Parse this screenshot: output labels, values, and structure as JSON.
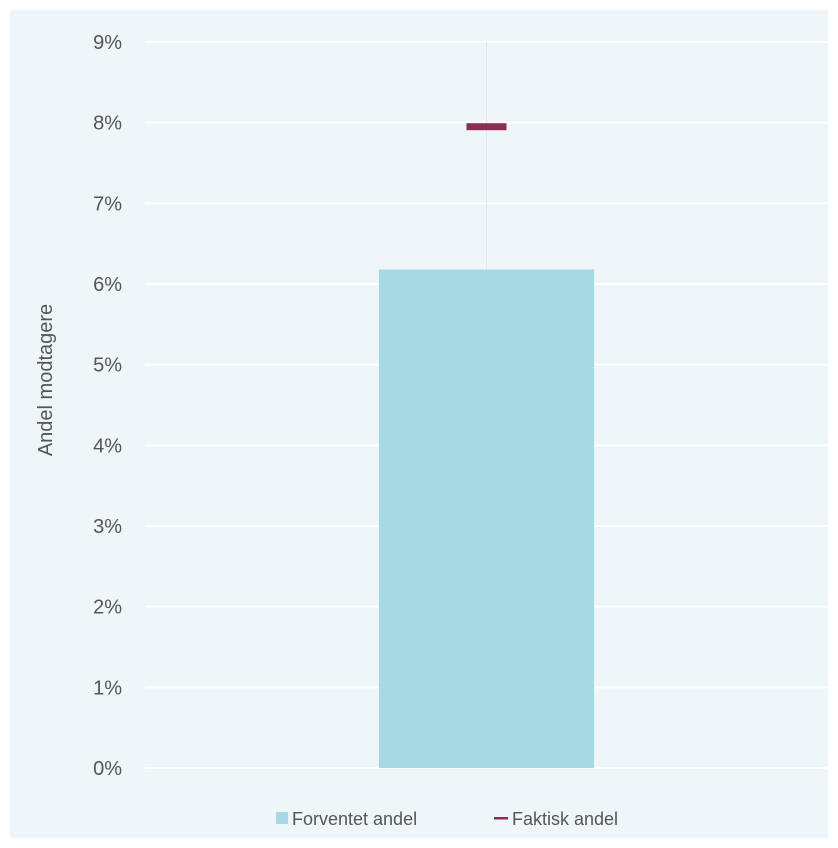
{
  "chart_data": {
    "type": "bar",
    "title": "",
    "xlabel": "",
    "ylabel": "Andel modtagere",
    "categories": [
      ""
    ],
    "ylim": [
      0,
      9
    ],
    "y_ticks": [
      "0%",
      "1%",
      "2%",
      "3%",
      "4%",
      "5%",
      "6%",
      "7%",
      "8%",
      "9%"
    ],
    "grid": true,
    "legend_position": "bottom",
    "series": [
      {
        "name": "Forventet andel",
        "kind": "bar",
        "values": [
          6.18
        ],
        "color": "#a8d8e3"
      },
      {
        "name": "Faktisk andel",
        "kind": "marker",
        "values": [
          7.95
        ],
        "color": "#8b2e52"
      }
    ]
  }
}
